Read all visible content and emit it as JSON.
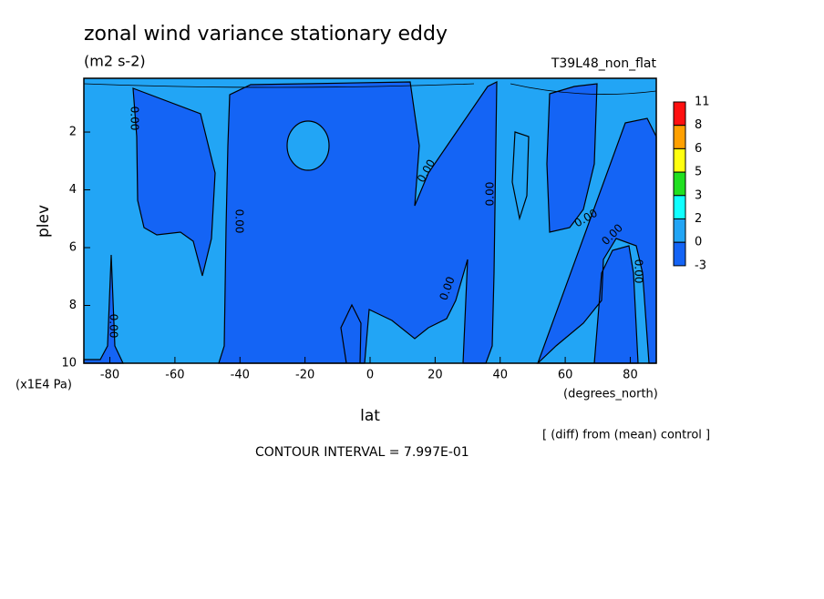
{
  "chart_data": {
    "type": "contour",
    "title": "zonal wind variance stationary eddy",
    "subtitle": "(m2 s-2)",
    "run_label": "T39L48_non_flat",
    "x_label": "lat",
    "x_units": "(degrees_north)",
    "y_label": "plev",
    "y_units": "(x1E4 Pa)",
    "note": "[ (diff) from (mean) control ]",
    "contour_interval": "CONTOUR INTERVAL = 7.997E-01",
    "xlim": [
      -88,
      88
    ],
    "xticks": [
      -80,
      -60,
      -40,
      -20,
      0,
      20,
      40,
      60,
      80
    ],
    "ylim": [
      10,
      0.14
    ],
    "yticks": [
      2,
      4,
      6,
      8,
      10
    ],
    "colorbar": {
      "levels": [
        11,
        8,
        6,
        5,
        3,
        2,
        0,
        -3
      ],
      "colors": [
        "#ff1010",
        "#ffa000",
        "#ffff10",
        "#20e020",
        "#10ffff",
        "#22a5f5",
        "#1464f5"
      ]
    },
    "contour_labels": [
      "0.00",
      "0.00",
      "0.00",
      "0.00",
      "0.00",
      "0.00",
      "0.00",
      "0.00",
      "0.00"
    ]
  }
}
